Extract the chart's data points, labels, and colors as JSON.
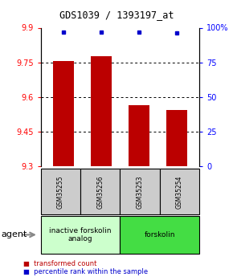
{
  "title": "GDS1039 / 1393197_at",
  "samples": [
    "GSM35255",
    "GSM35256",
    "GSM35253",
    "GSM35254"
  ],
  "transformed_counts": [
    9.755,
    9.775,
    9.565,
    9.545
  ],
  "percentile_ranks": [
    97,
    97,
    97,
    96
  ],
  "ylim_left": [
    9.3,
    9.9
  ],
  "yticks_left": [
    9.3,
    9.45,
    9.6,
    9.75,
    9.9
  ],
  "yticks_right": [
    0,
    25,
    50,
    75,
    100
  ],
  "ylim_right": [
    0,
    100
  ],
  "bar_color": "#bb0000",
  "dot_color": "#0000cc",
  "groups": [
    {
      "label": "inactive forskolin\nanalog",
      "color": "#ccffcc",
      "span": [
        0,
        1
      ]
    },
    {
      "label": "forskolin",
      "color": "#44dd44",
      "span": [
        2,
        3
      ]
    }
  ],
  "bar_width": 0.55,
  "sample_box_color": "#cccccc",
  "agent_label": "agent"
}
